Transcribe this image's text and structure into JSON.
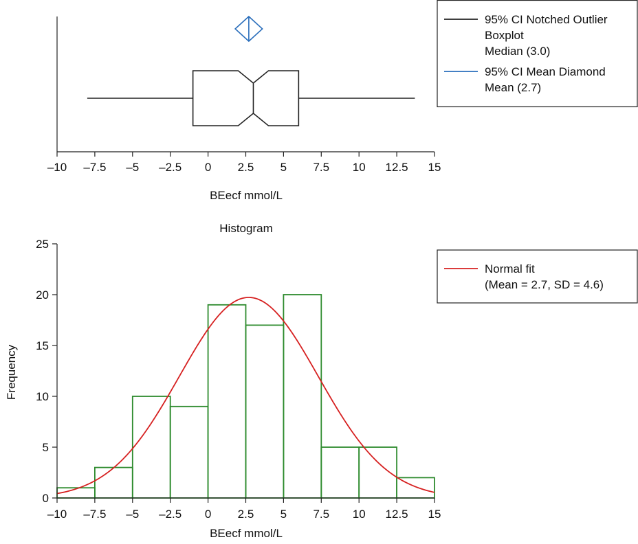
{
  "chart_data": [
    {
      "type": "box",
      "xlabel": "BEecf mmol/L",
      "xlim": [
        -10,
        15
      ],
      "xticks": [
        -10,
        -7.5,
        -5,
        -2.5,
        0,
        2.5,
        5,
        7.5,
        10,
        12.5,
        15
      ],
      "xtick_labels": [
        "–10",
        "–7.5",
        "–5",
        "–2.5",
        "0",
        "2.5",
        "5",
        "7.5",
        "10",
        "12.5",
        "15"
      ],
      "box": {
        "whisker_low": -8.0,
        "q1": -1.0,
        "median": 3.0,
        "q3": 6.0,
        "whisker_high": 13.7,
        "notch_low": 2.0,
        "notch_high": 4.0,
        "color": "#222222"
      },
      "mean_diamond": {
        "mean": 2.7,
        "ci_low": 1.8,
        "ci_high": 3.6,
        "color": "#2a6ebb"
      },
      "legend": {
        "placement": "top-right",
        "entries": [
          {
            "lines": [
              "95% CI Notched Outlier",
              "Boxplot",
              "Median (3.0)"
            ],
            "color": "#222222"
          },
          {
            "lines": [
              "95% CI Mean Diamond",
              "Mean (2.7)"
            ],
            "color": "#2a6ebb"
          }
        ]
      }
    },
    {
      "type": "bar",
      "title": "Histogram",
      "xlabel": "BEecf mmol/L",
      "ylabel": "Frequency",
      "xlim": [
        -10,
        15
      ],
      "ylim": [
        0,
        25
      ],
      "xticks": [
        -10,
        -7.5,
        -5,
        -2.5,
        0,
        2.5,
        5,
        7.5,
        10,
        12.5,
        15
      ],
      "xtick_labels": [
        "–10",
        "–7.5",
        "–5",
        "–2.5",
        "0",
        "2.5",
        "5",
        "7.5",
        "10",
        "12.5",
        "15"
      ],
      "yticks": [
        0,
        5,
        10,
        15,
        20,
        25
      ],
      "ytick_labels": [
        "0",
        "5",
        "10",
        "15",
        "20",
        "25"
      ],
      "bin_edges": [
        -10,
        -7.5,
        -5,
        -2.5,
        0,
        2.5,
        5,
        7.5,
        10,
        12.5,
        15
      ],
      "values": [
        1,
        3,
        10,
        9,
        19,
        17,
        20,
        5,
        5,
        2
      ],
      "bar_color": "#2e8b2e",
      "fit": {
        "type": "normal",
        "mean": 2.7,
        "sd": 4.6,
        "color": "#d62020"
      },
      "legend": {
        "placement": "top-right",
        "entries": [
          {
            "lines": [
              "Normal fit",
              "(Mean = 2.7, SD = 4.6)"
            ],
            "color": "#d62020"
          }
        ]
      }
    }
  ]
}
